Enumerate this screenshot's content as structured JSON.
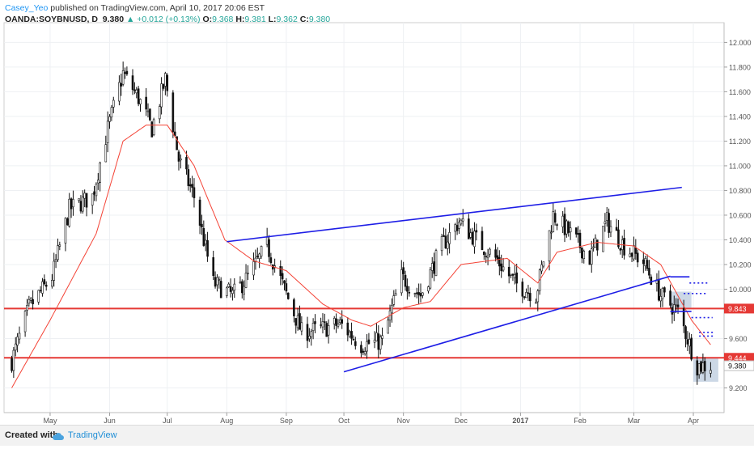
{
  "header": {
    "author": "Casey_Yeo",
    "published": "published on TradingView.com, April 10, 2017 20:06 EST",
    "symbol": "OANDA:SOYBNUSD, D",
    "last": "9.380",
    "change": "+0.012 (+0.13%)",
    "o_label": "O:",
    "o_value": "9.368",
    "h_label": "H:",
    "h_value": "9.381",
    "l_label": "L:",
    "l_value": "9.362",
    "c_label": "C:",
    "c_value": "9.380"
  },
  "footer": {
    "created": "Created with",
    "brand": "TradingView"
  },
  "colors": {
    "up": "#26a69a",
    "candle": "#111111",
    "ma": "#f44336",
    "trendline": "#1e1ee6",
    "hline": "#e53935",
    "box_fill": "#b7c7dc",
    "grid": "#eef0f3"
  },
  "chart_data": {
    "type": "candlestick",
    "title": "",
    "xlabel": "",
    "ylabel": "",
    "ylim": [
      9.0,
      12.16
    ],
    "x_ticks": [
      "May",
      "Jun",
      "Jul",
      "Aug",
      "Sep",
      "Oct",
      "Nov",
      "Dec",
      "2017",
      "Feb",
      "Mar",
      "Apr"
    ],
    "y_ticks": [
      "12.000",
      "11.800",
      "11.600",
      "11.400",
      "11.200",
      "11.000",
      "10.800",
      "10.600",
      "10.400",
      "10.200",
      "10.000",
      "9.600",
      "9.200"
    ],
    "y_tick_values": [
      12.0,
      11.8,
      11.6,
      11.4,
      11.2,
      11.0,
      10.8,
      10.6,
      10.4,
      10.2,
      10.0,
      9.6,
      9.2
    ],
    "price_markers": [
      {
        "label": "9.843",
        "value": 9.843,
        "color": "#e53935"
      },
      {
        "label": "9.444",
        "value": 9.444,
        "color": "#e53935"
      },
      {
        "label": "9.380",
        "value": 9.38,
        "color": "#ffffff"
      }
    ],
    "horizontal_lines": [
      9.843,
      9.444
    ],
    "trendlines": [
      {
        "from": [
          "2016-08-01",
          10.385
        ],
        "to": [
          "2017-03-26",
          10.825
        ]
      },
      {
        "from": [
          "2016-10-01",
          9.33
        ],
        "to": [
          "2017-03-20",
          10.105
        ]
      }
    ],
    "close_series_anchors": [
      {
        "date": "2016-04-11",
        "value": 9.42
      },
      {
        "date": "2016-04-20",
        "value": 9.85
      },
      {
        "date": "2016-05-02",
        "value": 10.1
      },
      {
        "date": "2016-05-11",
        "value": 10.65
      },
      {
        "date": "2016-05-23",
        "value": 10.75
      },
      {
        "date": "2016-05-31",
        "value": 11.3
      },
      {
        "date": "2016-06-08",
        "value": 11.75
      },
      {
        "date": "2016-06-16",
        "value": 11.55
      },
      {
        "date": "2016-06-23",
        "value": 11.3
      },
      {
        "date": "2016-06-30",
        "value": 11.7
      },
      {
        "date": "2016-07-07",
        "value": 11.05
      },
      {
        "date": "2016-07-15",
        "value": 10.75
      },
      {
        "date": "2016-07-25",
        "value": 10.05
      },
      {
        "date": "2016-08-04",
        "value": 9.95
      },
      {
        "date": "2016-08-12",
        "value": 10.1
      },
      {
        "date": "2016-08-22",
        "value": 10.35
      },
      {
        "date": "2016-08-31",
        "value": 10.0
      },
      {
        "date": "2016-09-09",
        "value": 9.65
      },
      {
        "date": "2016-09-20",
        "value": 9.68
      },
      {
        "date": "2016-09-29",
        "value": 9.72
      },
      {
        "date": "2016-10-10",
        "value": 9.55
      },
      {
        "date": "2016-10-21",
        "value": 9.58
      },
      {
        "date": "2016-10-31",
        "value": 10.1
      },
      {
        "date": "2016-11-10",
        "value": 9.95
      },
      {
        "date": "2016-11-21",
        "value": 10.35
      },
      {
        "date": "2016-11-30",
        "value": 10.55
      },
      {
        "date": "2016-12-09",
        "value": 10.4
      },
      {
        "date": "2016-12-19",
        "value": 10.25
      },
      {
        "date": "2016-12-29",
        "value": 10.05
      },
      {
        "date": "2017-01-09",
        "value": 9.95
      },
      {
        "date": "2017-01-18",
        "value": 10.6
      },
      {
        "date": "2017-01-27",
        "value": 10.45
      },
      {
        "date": "2017-02-06",
        "value": 10.25
      },
      {
        "date": "2017-02-15",
        "value": 10.55
      },
      {
        "date": "2017-02-24",
        "value": 10.35
      },
      {
        "date": "2017-03-06",
        "value": 10.22
      },
      {
        "date": "2017-03-15",
        "value": 9.95
      },
      {
        "date": "2017-03-24",
        "value": 9.82
      },
      {
        "date": "2017-04-03",
        "value": 9.38
      },
      {
        "date": "2017-04-10",
        "value": 9.38
      }
    ],
    "moving_average_anchors": [
      {
        "date": "2016-04-11",
        "value": 9.2
      },
      {
        "date": "2016-05-01",
        "value": 9.75
      },
      {
        "date": "2016-05-25",
        "value": 10.45
      },
      {
        "date": "2016-06-08",
        "value": 11.2
      },
      {
        "date": "2016-06-20",
        "value": 11.33
      },
      {
        "date": "2016-07-01",
        "value": 11.33
      },
      {
        "date": "2016-07-15",
        "value": 11.0
      },
      {
        "date": "2016-07-31",
        "value": 10.4
      },
      {
        "date": "2016-08-15",
        "value": 10.23
      },
      {
        "date": "2016-09-01",
        "value": 10.15
      },
      {
        "date": "2016-09-20",
        "value": 9.88
      },
      {
        "date": "2016-10-05",
        "value": 9.75
      },
      {
        "date": "2016-10-15",
        "value": 9.7
      },
      {
        "date": "2016-11-01",
        "value": 9.85
      },
      {
        "date": "2016-11-15",
        "value": 9.9
      },
      {
        "date": "2016-12-01",
        "value": 10.2
      },
      {
        "date": "2016-12-25",
        "value": 10.25
      },
      {
        "date": "2017-01-10",
        "value": 10.05
      },
      {
        "date": "2017-01-20",
        "value": 10.3
      },
      {
        "date": "2017-02-10",
        "value": 10.38
      },
      {
        "date": "2017-03-01",
        "value": 10.35
      },
      {
        "date": "2017-03-15",
        "value": 10.2
      },
      {
        "date": "2017-03-31",
        "value": 9.75
      },
      {
        "date": "2017-04-10",
        "value": 9.55
      }
    ],
    "annotation_boxes": [
      {
        "x0": "2017-03-20",
        "x1": "2017-03-31",
        "y0": 9.85,
        "y1": 9.98
      },
      {
        "x0": "2017-04-01",
        "x1": "2017-04-14",
        "y0": 9.25,
        "y1": 9.44
      }
    ],
    "levels": [
      {
        "x0": "2017-03-20",
        "x1": "2017-03-30",
        "value": 10.1,
        "style": "solid"
      },
      {
        "x0": "2017-03-20",
        "x1": "2017-03-31",
        "value": 9.82,
        "style": "solid"
      },
      {
        "x0": "2017-03-30",
        "x1": "2017-04-09",
        "value": 10.05,
        "style": "dotted"
      },
      {
        "x0": "2017-03-27",
        "x1": "2017-04-08",
        "value": 9.965,
        "style": "dotted"
      },
      {
        "x0": "2017-03-31",
        "x1": "2017-04-11",
        "value": 9.77,
        "style": "dotted"
      },
      {
        "x0": "2017-04-04",
        "x1": "2017-04-12",
        "value": 9.65,
        "style": "dotted"
      },
      {
        "x0": "2017-04-04",
        "x1": "2017-04-12",
        "value": 9.62,
        "style": "dotted"
      }
    ]
  }
}
